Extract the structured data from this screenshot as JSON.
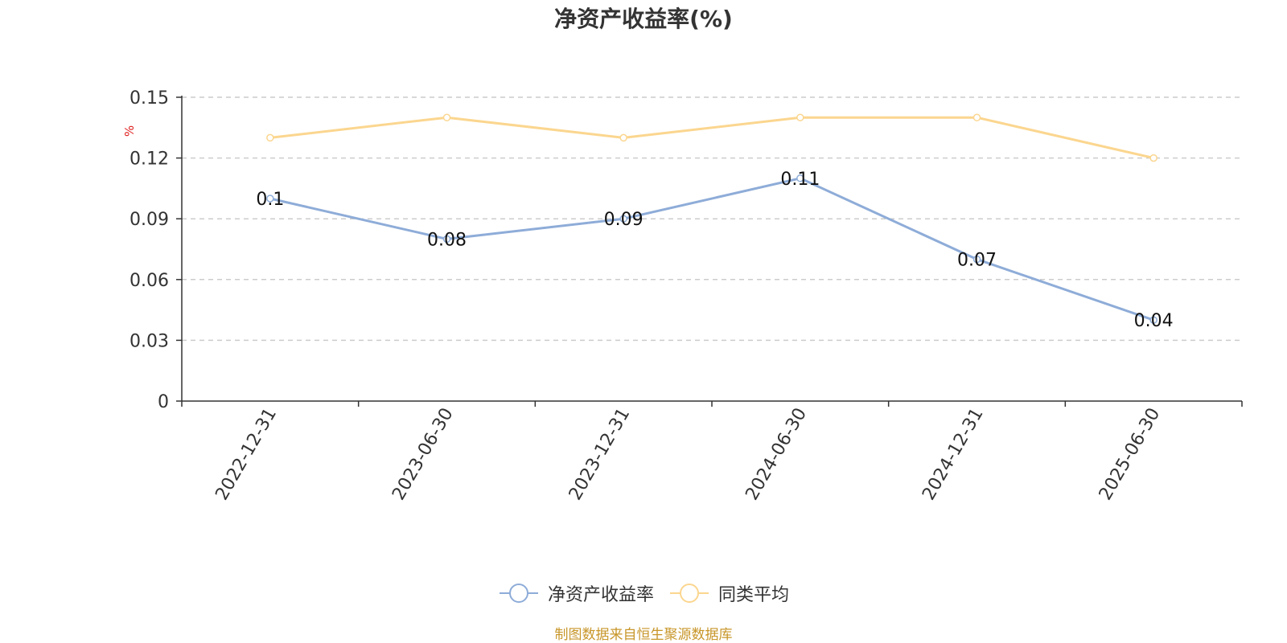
{
  "chart_data": {
    "type": "line",
    "title": "净资产收益率(%)",
    "ylabel": "%",
    "xlabel": "",
    "categories": [
      "2022-12-31",
      "2023-06-30",
      "2023-12-31",
      "2024-06-30",
      "2024-12-31",
      "2025-06-30"
    ],
    "series": [
      {
        "name": "净资产收益率",
        "values": [
          0.1,
          0.08,
          0.09,
          0.11,
          0.07,
          0.04
        ],
        "color": "#8eacd8",
        "show_labels": true
      },
      {
        "name": "同类平均",
        "values": [
          0.13,
          0.14,
          0.13,
          0.14,
          0.14,
          0.12
        ],
        "color": "#fbd68f",
        "show_labels": false
      }
    ],
    "ylim": [
      0,
      0.15
    ],
    "yticks": [
      0,
      0.03,
      0.06,
      0.09,
      0.12,
      0.15
    ],
    "ytick_labels": [
      "0",
      "0.03",
      "0.06",
      "0.09",
      "0.12",
      "0.15"
    ],
    "grid": true,
    "legend_position": "bottom-center"
  },
  "source": "制图数据来自恒生聚源数据库"
}
